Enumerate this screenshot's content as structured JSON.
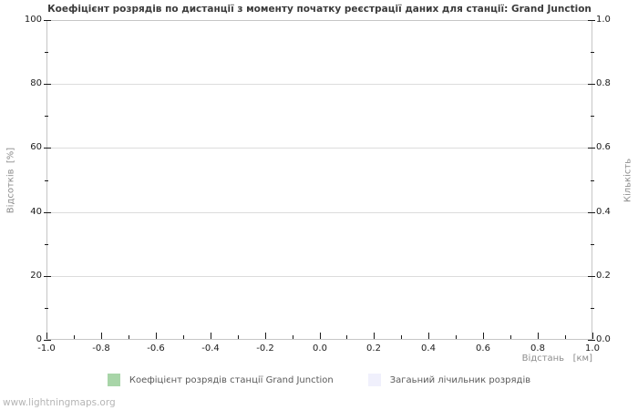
{
  "watermark": "www.lightningmaps.org",
  "chart_data": {
    "type": "line",
    "title": "Коефіцієнт розрядів по дистанції з моменту початку реєстрації даних для станції: Grand Junction",
    "xlabel": "Відстань   [км]",
    "ylabel_left": "Відсотків  [%]",
    "ylabel_right": "Кількість",
    "x_ticks": [
      "-1.0",
      "-0.8",
      "-0.6",
      "-0.4",
      "-0.2",
      "0.0",
      "0.2",
      "0.4",
      "0.6",
      "0.8",
      "1.0"
    ],
    "y_left_ticks": [
      "0",
      "20",
      "40",
      "60",
      "80",
      "100"
    ],
    "y_right_ticks": [
      "0.0",
      "0.2",
      "0.4",
      "0.6",
      "0.8",
      "1.0"
    ],
    "xlim": [
      -1.0,
      1.0
    ],
    "ylim_left": [
      0,
      100
    ],
    "ylim_right": [
      0.0,
      1.0
    ],
    "grid": "horizontal-major-only",
    "minor_ticks_per_interval": 1,
    "grid_color": "#dcdcdc",
    "axis_border_color": "#c6c6c6",
    "tick_color": "#1a1a1a",
    "series": [
      {
        "name": "Коефіцієнт розрядів станції Grand Junction",
        "color": "#a8d5a8",
        "values": []
      },
      {
        "name": "Загаьний лічильник розрядів",
        "color": "#f0f0fc",
        "values": []
      }
    ],
    "legend_position": "bottom-center",
    "plot_is_empty": true
  }
}
